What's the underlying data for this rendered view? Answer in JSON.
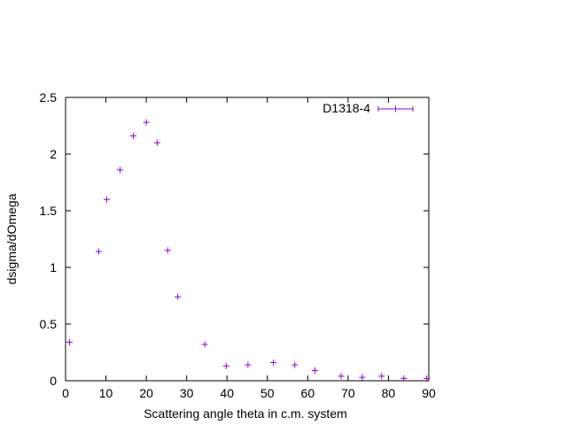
{
  "chart_data": {
    "type": "scatter",
    "xlabel": "Scattering angle theta in c.m. system",
    "ylabel": "dsigma/dOmega",
    "xlim": [
      0,
      90
    ],
    "ylim": [
      0,
      2.5
    ],
    "xticks": [
      "0",
      "10",
      "20",
      "30",
      "40",
      "50",
      "60",
      "70",
      "80",
      "90"
    ],
    "yticks": [
      "0",
      "0.5",
      "1",
      "1.5",
      "2",
      "2.5"
    ],
    "grid": false,
    "legend_position": "top-right",
    "series": [
      {
        "name": "D1318-4",
        "color": "#9400d3",
        "marker": "plus",
        "points": [
          [
            1.0,
            0.34
          ],
          [
            8.2,
            1.14
          ],
          [
            10.2,
            1.6
          ],
          [
            13.5,
            1.86
          ],
          [
            16.8,
            2.16
          ],
          [
            20.0,
            2.28
          ],
          [
            22.7,
            2.1
          ],
          [
            25.3,
            1.15
          ],
          [
            27.8,
            0.74
          ],
          [
            34.5,
            0.32
          ],
          [
            39.8,
            0.13
          ],
          [
            45.2,
            0.14
          ],
          [
            51.5,
            0.16
          ],
          [
            56.8,
            0.14
          ],
          [
            61.8,
            0.09
          ],
          [
            68.3,
            0.04
          ],
          [
            73.5,
            0.03
          ],
          [
            78.3,
            0.04
          ],
          [
            83.8,
            0.02
          ],
          [
            89.5,
            0.02
          ]
        ]
      }
    ]
  }
}
